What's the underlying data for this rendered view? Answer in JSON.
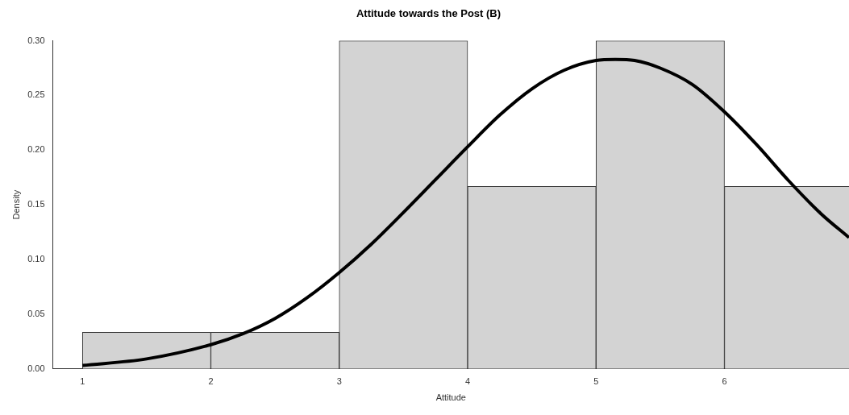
{
  "chart_data": {
    "type": "histogram",
    "title": "Attitude towards the Post (B)",
    "xlabel": "Attitude",
    "ylabel": "Density",
    "bins": [
      1,
      2,
      3,
      4,
      5,
      6,
      7
    ],
    "values": [
      0.0333,
      0.0333,
      0.3,
      0.1667,
      0.3,
      0.1667
    ],
    "color": "#d3d3d3",
    "series": [
      {
        "type": "line",
        "color": "#000000",
        "x": [
          1,
          1.5,
          2,
          2.25,
          2.5,
          2.75,
          3,
          3.25,
          3.5,
          3.75,
          4,
          4.25,
          4.5,
          4.75,
          5,
          5.15,
          5.3,
          5.5,
          5.75,
          6,
          6.25,
          6.5,
          6.75,
          6.97
        ],
        "values": [
          0.003,
          0.009,
          0.022,
          0.032,
          0.046,
          0.065,
          0.088,
          0.114,
          0.143,
          0.173,
          0.203,
          0.232,
          0.256,
          0.273,
          0.282,
          0.283,
          0.282,
          0.275,
          0.26,
          0.235,
          0.205,
          0.172,
          0.142,
          0.12
        ]
      }
    ],
    "xlim": [
      0.77,
      6.97
    ],
    "xticks": [
      1,
      2,
      3,
      4,
      5,
      6
    ],
    "ylim": [
      0,
      0.3
    ],
    "yticks": [
      {
        "value": 0,
        "label": "0.00"
      },
      {
        "value": 0.05,
        "label": "0.05"
      },
      {
        "value": 0.1,
        "label": "0.10"
      },
      {
        "value": 0.15,
        "label": "0.15"
      },
      {
        "value": 0.2,
        "label": "0.20"
      },
      {
        "value": 0.25,
        "label": "0.25"
      },
      {
        "value": 0.3,
        "label": "0.30"
      }
    ],
    "grid": false,
    "legend": false
  }
}
